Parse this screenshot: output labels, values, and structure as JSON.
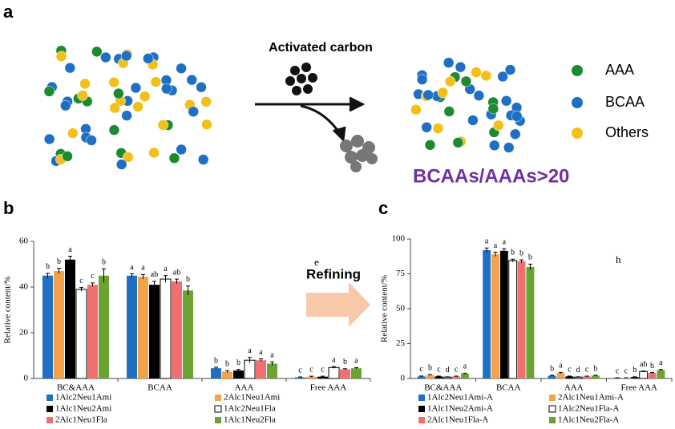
{
  "figure": {
    "panel_a": "a",
    "panel_b": "b",
    "panel_c": "c",
    "process": "Activated carbon",
    "legend": [
      "AAA",
      "BCAA",
      "Others"
    ],
    "result": "BCAAs/AAAs>20",
    "arrow_label": "Refining"
  },
  "chart_data": [
    {
      "type": "bar",
      "annotation": "e",
      "y_label": "Relative content/%",
      "categories": [
        "BC&AAA",
        "BCAA",
        "AAA",
        "Free AAA"
      ],
      "ylim": [
        0,
        60
      ],
      "yticks": [
        0,
        20,
        40,
        60
      ],
      "series": [
        {
          "name": "1Alc2Neu1Ami",
          "color": "#1f6fc5",
          "values": [
            45,
            45,
            4.5,
            0.5
          ],
          "errors": [
            1,
            0.8,
            0.4,
            0.2
          ],
          "labels": [
            "b",
            "a",
            "b",
            "c"
          ]
        },
        {
          "name": "2Alc1Neu1Ami",
          "color": "#f4a24a",
          "values": [
            47,
            44.5,
            3,
            0.8
          ],
          "errors": [
            1.2,
            1,
            0.4,
            0.2
          ],
          "labels": [
            "b",
            "a",
            "b",
            "c"
          ]
        },
        {
          "name": "1Alc1Neu2Ami",
          "color": "#000000",
          "values": [
            52,
            41,
            3.5,
            0.8
          ],
          "errors": [
            1.5,
            1.5,
            0.5,
            0.2
          ],
          "labels": [
            "a",
            "ab",
            "b",
            "c"
          ]
        },
        {
          "name": "1Alc2Neu1Fla",
          "color": "#ffffff",
          "values": [
            39,
            43.5,
            8,
            4.8
          ],
          "errors": [
            0.8,
            1.5,
            1.2,
            0.4
          ],
          "labels": [
            "c",
            "a",
            "a",
            "a"
          ]
        },
        {
          "name": "2Alc1Neu1Fla",
          "color": "#f07070",
          "values": [
            41,
            42.5,
            8,
            4
          ],
          "errors": [
            0.8,
            1,
            0.6,
            0.3
          ],
          "labels": [
            "c",
            "ab",
            "a",
            "b"
          ]
        },
        {
          "name": "1Alc1Neu2Fla",
          "color": "#6aa332",
          "values": [
            45,
            38.5,
            6.5,
            4.5
          ],
          "errors": [
            3,
            2,
            0.8,
            0.3
          ],
          "labels": [
            "b",
            "b",
            "a",
            "a"
          ]
        }
      ]
    },
    {
      "type": "bar",
      "annotation": "h",
      "y_label": "Relative content/%",
      "categories": [
        "BC&AAA",
        "BCAA",
        "AAA",
        "Free AAA"
      ],
      "ylim": [
        0,
        100
      ],
      "yticks": [
        0,
        25,
        50,
        75,
        100
      ],
      "series": [
        {
          "name": "1Alc2Neu1Ami-A",
          "color": "#1f6fc5",
          "values": [
            1.5,
            92,
            2,
            0.5
          ],
          "errors": [
            0.3,
            1.5,
            0.3,
            0.1
          ],
          "labels": [
            "c",
            "a",
            "b",
            "c"
          ]
        },
        {
          "name": "2Alc1Neu1Ami-A",
          "color": "#f4a24a",
          "values": [
            2.5,
            89,
            4,
            0.5
          ],
          "errors": [
            0.3,
            1.5,
            0.4,
            0.1
          ],
          "labels": [
            "b",
            "a",
            "a",
            "c"
          ]
        },
        {
          "name": "1Alc1Neu2Ami-A",
          "color": "#000000",
          "values": [
            1.5,
            91.5,
            1.5,
            1
          ],
          "errors": [
            0.2,
            1.5,
            0.2,
            0.2
          ],
          "labels": [
            "c",
            "a",
            "c",
            "b"
          ]
        },
        {
          "name": "1Alc2Neu1Fla-A",
          "color": "#ffffff",
          "values": [
            1,
            84.5,
            1,
            5
          ],
          "errors": [
            0.2,
            1,
            0.2,
            0.4
          ],
          "labels": [
            "d",
            "b",
            "d",
            "ab"
          ]
        },
        {
          "name": "2Alc1Neu1Fla-A",
          "color": "#f07070",
          "values": [
            1.5,
            84,
            1.5,
            4
          ],
          "errors": [
            0.2,
            1,
            0.2,
            0.3
          ],
          "labels": [
            "c",
            "b",
            "c",
            "b"
          ]
        },
        {
          "name": "1Alc1Neu2Fla-A",
          "color": "#6aa332",
          "values": [
            3.5,
            80,
            2,
            6
          ],
          "errors": [
            0.3,
            2,
            0.3,
            0.5
          ],
          "labels": [
            "a",
            "b",
            "b",
            "a"
          ]
        }
      ]
    }
  ]
}
